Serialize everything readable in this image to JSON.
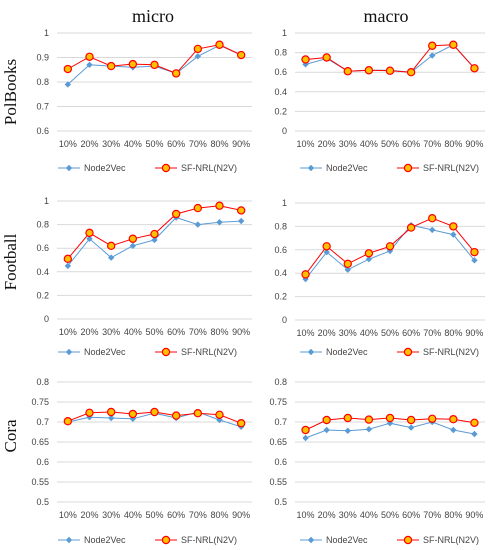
{
  "column_titles": [
    "micro",
    "macro"
  ],
  "row_titles": [
    "PolBooks",
    "Football",
    "Cora"
  ],
  "colors": {
    "node2vec": "#5b9bd5",
    "sfnrl": "#ff0000",
    "sfnrl_fill": "#ffc000"
  },
  "chart_data": [
    {
      "type": "line",
      "title": "micro",
      "ylabel": "PolBooks",
      "categories": [
        "10%",
        "20%",
        "30%",
        "40%",
        "50%",
        "60%",
        "70%",
        "80%",
        "90%"
      ],
      "ylim": [
        0.6,
        1
      ],
      "yticks": [
        "0.6",
        "0.7",
        "0.8",
        "0.9",
        "1"
      ],
      "grid": true,
      "legend": "bottom",
      "series": [
        {
          "name": "Node2Vec",
          "values": [
            0.79,
            0.87,
            0.865,
            0.86,
            0.865,
            0.835,
            0.905,
            0.95,
            0.91
          ]
        },
        {
          "name": "SF-NRL(N2V)",
          "values": [
            0.853,
            0.903,
            0.865,
            0.873,
            0.87,
            0.835,
            0.935,
            0.952,
            0.91
          ]
        }
      ]
    },
    {
      "type": "line",
      "title": "macro",
      "ylabel": "PolBooks",
      "categories": [
        "10%",
        "20%",
        "30%",
        "40%",
        "50%",
        "60%",
        "70%",
        "80%",
        "90%"
      ],
      "ylim": [
        0,
        1
      ],
      "yticks": [
        "0",
        "0.2",
        "0.4",
        "0.6",
        "0.8",
        "1"
      ],
      "grid": true,
      "legend": "bottom",
      "series": [
        {
          "name": "Node2Vec",
          "values": [
            0.68,
            0.74,
            0.61,
            0.62,
            0.62,
            0.6,
            0.77,
            0.88,
            0.64
          ]
        },
        {
          "name": "SF-NRL(N2V)",
          "values": [
            0.73,
            0.75,
            0.61,
            0.62,
            0.615,
            0.6,
            0.87,
            0.88,
            0.64
          ]
        }
      ]
    },
    {
      "type": "line",
      "title": "micro",
      "ylabel": "Football",
      "categories": [
        "10%",
        "20%",
        "30%",
        "40%",
        "50%",
        "60%",
        "70%",
        "80%",
        "90%"
      ],
      "ylim": [
        0,
        1
      ],
      "yticks": [
        "0",
        "0.2",
        "0.4",
        "0.6",
        "0.8",
        "1"
      ],
      "grid": true,
      "legend": "bottom",
      "series": [
        {
          "name": "Node2Vec",
          "values": [
            0.45,
            0.68,
            0.52,
            0.62,
            0.67,
            0.86,
            0.8,
            0.82,
            0.83
          ]
        },
        {
          "name": "SF-NRL(N2V)",
          "values": [
            0.51,
            0.73,
            0.62,
            0.68,
            0.72,
            0.89,
            0.94,
            0.96,
            0.92
          ]
        }
      ]
    },
    {
      "type": "line",
      "title": "macro",
      "ylabel": "Football",
      "categories": [
        "10%",
        "20%",
        "30%",
        "40%",
        "50%",
        "60%",
        "70%",
        "80%",
        "90%"
      ],
      "ylim": [
        0,
        1
      ],
      "yticks": [
        "0",
        "0.2",
        "0.4",
        "0.6",
        "0.8",
        "1"
      ],
      "grid": true,
      "legend": "bottom",
      "series": [
        {
          "name": "Node2Vec",
          "values": [
            0.35,
            0.58,
            0.43,
            0.52,
            0.59,
            0.81,
            0.77,
            0.73,
            0.51
          ]
        },
        {
          "name": "SF-NRL(N2V)",
          "values": [
            0.39,
            0.63,
            0.48,
            0.57,
            0.63,
            0.79,
            0.87,
            0.8,
            0.58
          ]
        }
      ]
    },
    {
      "type": "line",
      "title": "micro",
      "ylabel": "Cora",
      "categories": [
        "10%",
        "20%",
        "30%",
        "40%",
        "50%",
        "60%",
        "70%",
        "80%",
        "90%"
      ],
      "ylim": [
        0.5,
        0.8
      ],
      "yticks": [
        "0.5",
        "0.55",
        "0.6",
        "0.65",
        "0.7",
        "0.75",
        "0.8"
      ],
      "grid": true,
      "legend": "bottom",
      "series": [
        {
          "name": "Node2Vec",
          "values": [
            0.7,
            0.712,
            0.71,
            0.708,
            0.722,
            0.71,
            0.725,
            0.705,
            0.688
          ]
        },
        {
          "name": "SF-NRL(N2V)",
          "values": [
            0.702,
            0.723,
            0.725,
            0.72,
            0.725,
            0.716,
            0.722,
            0.718,
            0.697
          ]
        }
      ]
    },
    {
      "type": "line",
      "title": "macro",
      "ylabel": "Cora",
      "categories": [
        "10%",
        "20%",
        "30%",
        "40%",
        "50%",
        "60%",
        "70%",
        "80%",
        "90%"
      ],
      "ylim": [
        0.5,
        0.8
      ],
      "yticks": [
        "0.5",
        "0.55",
        "0.6",
        "0.65",
        "0.7",
        "0.75",
        "0.8"
      ],
      "grid": true,
      "legend": "bottom",
      "series": [
        {
          "name": "Node2Vec",
          "values": [
            0.66,
            0.68,
            0.678,
            0.682,
            0.697,
            0.686,
            0.7,
            0.68,
            0.67
          ]
        },
        {
          "name": "SF-NRL(N2V)",
          "values": [
            0.68,
            0.705,
            0.71,
            0.706,
            0.71,
            0.705,
            0.708,
            0.707,
            0.698
          ]
        }
      ]
    }
  ]
}
